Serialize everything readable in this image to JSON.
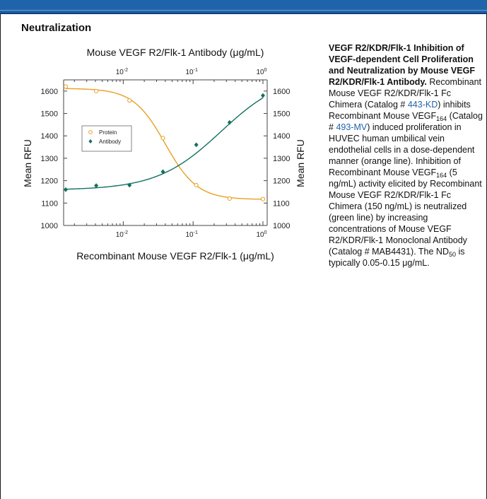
{
  "section_title": "Neutralization",
  "colors": {
    "protein": "#e8a020",
    "antibody": "#127060",
    "link": "#1f63ab",
    "header": "#1f63ab"
  },
  "chart_data": {
    "type": "scatter",
    "title": "Mouse VEGF R2/Flk-1 Antibody (μg/mL)",
    "xlabel": "Recombinant Mouse VEGF R2/Flk-1 (μg/mL)",
    "ylabel_left": "Mean RFU",
    "ylabel_right": "Mean RFU",
    "x_scale": "log",
    "xlim": [
      0.0014,
      1.15
    ],
    "ylim": [
      1000,
      1650
    ],
    "x_ticks": [
      {
        "value": 0.01,
        "base": "10",
        "exp": "-2"
      },
      {
        "value": 0.1,
        "base": "10",
        "exp": "-1"
      },
      {
        "value": 1,
        "base": "10",
        "exp": "0"
      }
    ],
    "y_ticks": [
      1000,
      1100,
      1200,
      1300,
      1400,
      1500,
      1600
    ],
    "legend_position": "left-middle",
    "series": [
      {
        "name": "Protein",
        "marker": "open-circle",
        "points": [
          {
            "x": 0.0015,
            "y": 1620
          },
          {
            "x": 0.0041,
            "y": 1600
          },
          {
            "x": 0.0123,
            "y": 1558
          },
          {
            "x": 0.037,
            "y": 1390
          },
          {
            "x": 0.111,
            "y": 1180
          },
          {
            "x": 0.333,
            "y": 1120
          },
          {
            "x": 1.0,
            "y": 1118
          }
        ],
        "fit": {
          "bottom": 1116,
          "top": 1612,
          "ec50": 0.04,
          "hill": 1.9
        }
      },
      {
        "name": "Antibody",
        "marker": "filled-diamond",
        "points": [
          {
            "x": 0.0015,
            "y": 1160
          },
          {
            "x": 0.0041,
            "y": 1178
          },
          {
            "x": 0.0123,
            "y": 1180
          },
          {
            "x": 0.037,
            "y": 1240
          },
          {
            "x": 0.111,
            "y": 1360
          },
          {
            "x": 0.333,
            "y": 1460
          },
          {
            "x": 1.0,
            "y": 1580
          }
        ],
        "fit": {
          "bottom": 1158,
          "top": 1680,
          "ec50": 0.25,
          "hill": 0.95
        }
      }
    ]
  },
  "description": {
    "bold_title": "VEGF R2/KDR/Flk-1 Inhibition of VEGF-dependent Cell Proliferation and Neutralization by Mouse VEGF R2/KDR/Flk-1 Antibody.",
    "t1": " Recombinant Mouse VEGF R2/KDR/Flk-1 Fc Chimera (Catalog # ",
    "link1": "443-KD",
    "t2": ") inhibits Recombinant Mouse VEGF",
    "sub1": "164",
    "t3": " (Catalog # ",
    "link2": "493-MV",
    "t4": ") induced proliferation in HUVEC human umbilical vein endothelial cells in a dose-dependent manner (orange line). Inhibition of Recombinant Mouse VEGF",
    "sub2": "164",
    "t5": " (5 ng/mL) activity elicited by Recombinant Mouse VEGF R2/KDR/Flk-1 Fc Chimera (150 ng/mL) is neutralized (green line) by increasing concentrations of Mouse VEGF R2/KDR/Flk-1 Monoclonal Antibody (Catalog # MAB4431). The ND",
    "sub3": "50",
    "t6": " is typically 0.05-0.15 μg/mL."
  }
}
